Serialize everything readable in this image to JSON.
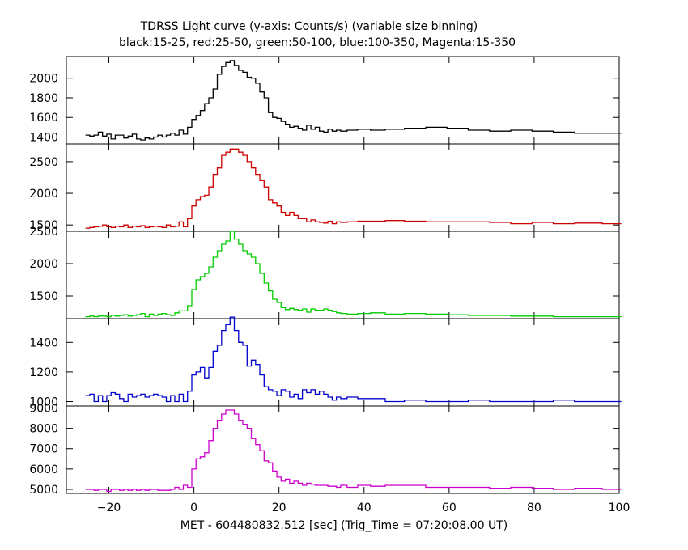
{
  "chart_data": {
    "type": "line",
    "title": "TDRSS Light curve (y-axis: Counts/s) (variable size binning)",
    "subtitle": "black:15-25, red:25-50, green:50-100, blue:100-350, Magenta:15-350",
    "xlabel": "MET - 604480832.512 [sec] (Trig_Time = 07:20:08.00 UT)",
    "xlim": [
      -30,
      100
    ],
    "xticks": [
      -20,
      0,
      20,
      40,
      60,
      80,
      100
    ],
    "x": [
      -25,
      -24,
      -23,
      -22,
      -21,
      -20,
      -19,
      -18,
      -17,
      -16,
      -15,
      -14,
      -13,
      -12,
      -11,
      -10,
      -9,
      -8,
      -7,
      -6,
      -5,
      -4,
      -3,
      -2,
      -1,
      0,
      1,
      2,
      3,
      4,
      5,
      6,
      7,
      8,
      9,
      10,
      11,
      12,
      13,
      14,
      15,
      16,
      17,
      18,
      19,
      20,
      21,
      22,
      23,
      24,
      25,
      26,
      27,
      28,
      29,
      30,
      31,
      32,
      33,
      34,
      35,
      37,
      40,
      43,
      47,
      52,
      57,
      62,
      67,
      72,
      77,
      82,
      87,
      92,
      100
    ],
    "series": [
      {
        "color": "#000000",
        "ylim": [
          1330,
          2220
        ],
        "yticks": [
          1400,
          1600,
          1800,
          2000
        ],
        "values": [
          1420,
          1410,
          1420,
          1450,
          1410,
          1430,
          1380,
          1420,
          1420,
          1390,
          1410,
          1430,
          1380,
          1370,
          1390,
          1380,
          1400,
          1420,
          1400,
          1420,
          1440,
          1420,
          1470,
          1430,
          1500,
          1580,
          1620,
          1670,
          1740,
          1800,
          1890,
          2040,
          2120,
          2160,
          2180,
          2130,
          2080,
          2060,
          2010,
          2000,
          1950,
          1860,
          1800,
          1650,
          1600,
          1590,
          1560,
          1530,
          1500,
          1510,
          1490,
          1470,
          1520,
          1480,
          1500,
          1460,
          1450,
          1480,
          1460,
          1470,
          1460,
          1470,
          1480,
          1470,
          1480,
          1490,
          1500,
          1490,
          1470,
          1460,
          1470,
          1460,
          1450,
          1440,
          1440
        ]
      },
      {
        "color": "#cc0000",
        "ylim": [
          1400,
          2780
        ],
        "yticks": [
          1500,
          2000,
          2500
        ],
        "values": [
          1450,
          1460,
          1470,
          1480,
          1500,
          1470,
          1460,
          1480,
          1470,
          1500,
          1460,
          1480,
          1470,
          1490,
          1460,
          1470,
          1480,
          1470,
          1460,
          1500,
          1470,
          1480,
          1550,
          1470,
          1600,
          1800,
          1900,
          1950,
          1970,
          2100,
          2300,
          2400,
          2600,
          2650,
          2700,
          2700,
          2650,
          2600,
          2500,
          2400,
          2300,
          2200,
          2100,
          1900,
          1850,
          1800,
          1700,
          1650,
          1700,
          1650,
          1600,
          1600,
          1550,
          1580,
          1550,
          1540,
          1530,
          1560,
          1520,
          1550,
          1540,
          1550,
          1560,
          1560,
          1570,
          1560,
          1550,
          1550,
          1550,
          1540,
          1520,
          1540,
          1520,
          1530,
          1520
        ]
      },
      {
        "color": "#00cc00",
        "ylim": [
          1150,
          2500
        ],
        "yticks": [
          1500,
          2000,
          2500
        ],
        "values": [
          1180,
          1190,
          1180,
          1190,
          1190,
          1180,
          1200,
          1190,
          1200,
          1210,
          1190,
          1200,
          1210,
          1230,
          1180,
          1220,
          1200,
          1220,
          1230,
          1210,
          1200,
          1240,
          1270,
          1270,
          1350,
          1600,
          1750,
          1800,
          1850,
          1950,
          2100,
          2200,
          2300,
          2350,
          2500,
          2380,
          2300,
          2200,
          2150,
          2100,
          2000,
          1850,
          1700,
          1580,
          1450,
          1400,
          1320,
          1290,
          1310,
          1290,
          1280,
          1300,
          1250,
          1300,
          1280,
          1280,
          1300,
          1280,
          1260,
          1240,
          1230,
          1220,
          1230,
          1240,
          1220,
          1230,
          1220,
          1210,
          1200,
          1200,
          1190,
          1190,
          1180,
          1180,
          1180
        ]
      },
      {
        "color": "#0000cc",
        "ylim": [
          970,
          1560
        ],
        "yticks": [
          1000,
          1200,
          1400
        ],
        "values": [
          1040,
          1050,
          1000,
          1040,
          1000,
          1040,
          1060,
          1050,
          1020,
          1000,
          1050,
          1030,
          1040,
          1050,
          1030,
          1040,
          1050,
          1040,
          1030,
          1000,
          1040,
          1000,
          1050,
          1000,
          1070,
          1180,
          1200,
          1230,
          1160,
          1230,
          1340,
          1380,
          1480,
          1520,
          1570,
          1480,
          1400,
          1380,
          1240,
          1280,
          1250,
          1180,
          1100,
          1080,
          1070,
          1040,
          1080,
          1070,
          1030,
          1050,
          1020,
          1080,
          1060,
          1080,
          1050,
          1070,
          1050,
          1030,
          1010,
          1030,
          1020,
          1030,
          1020,
          1020,
          1000,
          1010,
          1000,
          1000,
          1010,
          1000,
          1000,
          1000,
          1010,
          1000,
          1000
        ]
      },
      {
        "color": "#cc00cc",
        "ylim": [
          4800,
          9100
        ],
        "yticks": [
          5000,
          6000,
          7000,
          8000,
          9000
        ],
        "values": [
          5000,
          5000,
          4950,
          5000,
          5000,
          4900,
          5000,
          5000,
          4950,
          5000,
          4950,
          5000,
          4950,
          5000,
          4950,
          5000,
          5000,
          4950,
          4950,
          4950,
          5000,
          5100,
          5000,
          5200,
          5100,
          6000,
          6500,
          6600,
          6800,
          7400,
          8000,
          8400,
          8700,
          8900,
          8900,
          8700,
          8400,
          8200,
          8000,
          7500,
          7200,
          6900,
          6400,
          6300,
          5900,
          5600,
          5400,
          5500,
          5300,
          5400,
          5300,
          5200,
          5300,
          5250,
          5200,
          5200,
          5200,
          5150,
          5150,
          5100,
          5200,
          5100,
          5200,
          5150,
          5200,
          5200,
          5100,
          5100,
          5100,
          5050,
          5100,
          5050,
          5000,
          5050,
          5000
        ]
      }
    ]
  }
}
